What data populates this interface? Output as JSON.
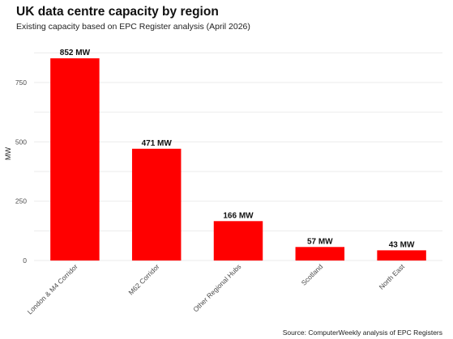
{
  "chart_data": {
    "type": "bar",
    "title": "UK data centre capacity by region",
    "subtitle": "Existing capacity based on EPC Register analysis (April 2026)",
    "xlabel": "",
    "ylabel": "MW",
    "categories": [
      "London & M4 Corridor",
      "M62 Corridor",
      "Other Regional Hubs",
      "Scotland",
      "North East"
    ],
    "values": [
      852,
      471,
      166,
      57,
      43
    ],
    "data_labels": [
      "852 MW",
      "471 MW",
      "166 MW",
      "57 MW",
      "43 MW"
    ],
    "yticks": [
      0,
      250,
      500,
      750
    ],
    "ytick_labels": [
      "0",
      "250",
      "500",
      "750"
    ],
    "ylim": [
      0,
      900
    ],
    "grid": true,
    "bar_color": "#ff0000",
    "source": "Source: ComputerWeekly analysis of EPC Registers"
  }
}
